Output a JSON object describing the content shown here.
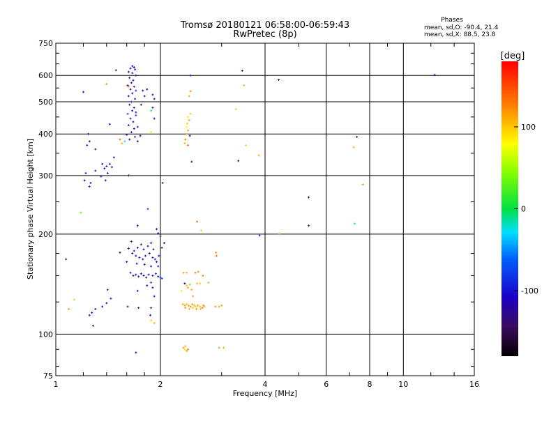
{
  "chart_data": {
    "type": "scatter",
    "title": "Tromsø 20180121 06:58:00-06:59:43",
    "subtitle": "RwPretec (8p)",
    "xlabel": "Frequency [MHz]",
    "ylabel": "Stationary phase Virtual Height [km]",
    "x_scale": "log",
    "y_scale": "log",
    "xlim": [
      1,
      16
    ],
    "ylim": [
      75,
      750
    ],
    "x_ticks": [
      1,
      2,
      4,
      6,
      8,
      10,
      16
    ],
    "x_tick_labels": [
      "1",
      "2",
      "4",
      "6",
      "8",
      "10",
      "16"
    ],
    "y_ticks": [
      75,
      100,
      200,
      300,
      400,
      500,
      600,
      750
    ],
    "y_tick_labels": [
      "75",
      "100",
      "200",
      "300",
      "400",
      "500",
      "600",
      "750"
    ],
    "grid": true,
    "stats": {
      "heading": "Phases",
      "line_o": "mean, sd,O: -90.4, 21.4",
      "line_x": "mean, sd,X:  88.5, 23.8"
    },
    "colorbar": {
      "label": "[deg]",
      "range": [
        -180,
        180
      ],
      "ticks": [
        -100,
        0,
        100
      ],
      "tick_labels": [
        "-100",
        "0",
        "100"
      ]
    },
    "points": [
      [
        1.66,
        640,
        -110
      ],
      [
        1.68,
        635,
        -105
      ],
      [
        1.64,
        630,
        -120
      ],
      [
        1.69,
        625,
        -100
      ],
      [
        1.62,
        615,
        -115
      ],
      [
        1.66,
        610,
        -90
      ],
      [
        1.7,
        600,
        -110
      ],
      [
        1.63,
        590,
        -105
      ],
      [
        1.67,
        580,
        -125
      ],
      [
        1.65,
        570,
        -100
      ],
      [
        1.61,
        560,
        -110
      ],
      [
        1.68,
        555,
        -95
      ],
      [
        1.64,
        545,
        -120
      ],
      [
        1.7,
        540,
        -80
      ],
      [
        1.66,
        530,
        -110
      ],
      [
        1.62,
        520,
        -100
      ],
      [
        1.69,
        510,
        -115
      ],
      [
        1.65,
        500,
        -90
      ],
      [
        1.63,
        490,
        -120
      ],
      [
        1.68,
        480,
        -100
      ],
      [
        1.66,
        470,
        -110
      ],
      [
        1.61,
        460,
        -85
      ],
      [
        1.7,
        455,
        -70
      ],
      [
        1.64,
        445,
        -105
      ],
      [
        1.67,
        435,
        -120
      ],
      [
        1.62,
        425,
        -100
      ],
      [
        1.68,
        415,
        -110
      ],
      [
        1.65,
        405,
        -95
      ],
      [
        1.6,
        398,
        -115
      ],
      [
        1.69,
        392,
        -100
      ],
      [
        1.63,
        385,
        -120
      ],
      [
        1.58,
        380,
        -30
      ],
      [
        1.55,
        375,
        110
      ],
      [
        1.53,
        385,
        140
      ],
      [
        1.72,
        380,
        -110
      ],
      [
        1.75,
        395,
        -100
      ],
      [
        1.72,
        420,
        -90
      ],
      [
        1.7,
        465,
        -100
      ],
      [
        1.76,
        490,
        -110
      ],
      [
        1.8,
        520,
        -130
      ],
      [
        1.83,
        545,
        -120
      ],
      [
        1.9,
        525,
        -110
      ],
      [
        1.92,
        510,
        -140
      ],
      [
        1.9,
        480,
        -90
      ],
      [
        1.88,
        470,
        -10
      ],
      [
        1.92,
        445,
        -100
      ],
      [
        1.88,
        405,
        90
      ],
      [
        1.78,
        540,
        -115
      ],
      [
        1.49,
        622,
        -140
      ],
      [
        1.4,
        565,
        120
      ],
      [
        1.2,
        535,
        -100
      ],
      [
        1.62,
        555,
        120
      ],
      [
        1.24,
        400,
        -110
      ],
      [
        1.25,
        380,
        -130
      ],
      [
        1.23,
        370,
        -100
      ],
      [
        1.3,
        360,
        -120
      ],
      [
        1.36,
        325,
        -110
      ],
      [
        1.4,
        320,
        -100
      ],
      [
        1.43,
        325,
        -120
      ],
      [
        1.38,
        315,
        -110
      ],
      [
        1.45,
        318,
        -105
      ],
      [
        1.41,
        305,
        -115
      ],
      [
        1.35,
        298,
        -100
      ],
      [
        1.39,
        290,
        -120
      ],
      [
        1.22,
        305,
        -100
      ],
      [
        1.21,
        290,
        -110
      ],
      [
        1.26,
        285,
        -120
      ],
      [
        1.25,
        278,
        -100
      ],
      [
        1.3,
        310,
        -110
      ],
      [
        1.47,
        340,
        -110
      ],
      [
        1.43,
        428,
        -100
      ],
      [
        1.62,
        300,
        -130
      ],
      [
        2.44,
        538,
        120
      ],
      [
        2.42,
        520,
        110
      ],
      [
        2.44,
        460,
        100
      ],
      [
        2.4,
        450,
        90
      ],
      [
        2.42,
        440,
        110
      ],
      [
        2.39,
        430,
        100
      ],
      [
        2.38,
        420,
        80
      ],
      [
        2.4,
        410,
        120
      ],
      [
        2.38,
        400,
        110
      ],
      [
        2.36,
        385,
        130
      ],
      [
        2.35,
        375,
        110
      ],
      [
        2.4,
        370,
        140
      ],
      [
        2.43,
        395,
        -110
      ],
      [
        2.46,
        330,
        -130
      ],
      [
        2.44,
        600,
        -100
      ],
      [
        3.44,
        620,
        -130
      ],
      [
        3.48,
        560,
        110
      ],
      [
        3.3,
        475,
        100
      ],
      [
        3.35,
        332,
        -150
      ],
      [
        3.52,
        370,
        100
      ],
      [
        3.84,
        345,
        110
      ],
      [
        4.38,
        582,
        -130
      ],
      [
        2.03,
        285,
        -140
      ],
      [
        5.34,
        258,
        -120
      ],
      [
        5.34,
        212,
        -130
      ],
      [
        7.35,
        392,
        -130
      ],
      [
        7.2,
        365,
        110
      ],
      [
        7.65,
        282,
        20
      ],
      [
        7.24,
        215,
        -30
      ],
      [
        12.3,
        602,
        -110
      ],
      [
        1.18,
        232,
        30
      ],
      [
        1.84,
        238,
        -80
      ],
      [
        1.72,
        212,
        -110
      ],
      [
        1.95,
        207,
        -140
      ],
      [
        1.97,
        201,
        -120
      ],
      [
        2.0,
        197,
        -130
      ],
      [
        3.86,
        198,
        -100
      ],
      [
        4.4,
        200,
        120
      ],
      [
        2.55,
        218,
        140
      ],
      [
        2.62,
        205,
        100
      ],
      [
        1.66,
        175,
        -120
      ],
      [
        1.7,
        172,
        -110
      ],
      [
        1.74,
        170,
        -115
      ],
      [
        1.78,
        168,
        -105
      ],
      [
        1.81,
        172,
        -120
      ],
      [
        1.86,
        175,
        -110
      ],
      [
        1.9,
        170,
        -100
      ],
      [
        1.93,
        168,
        -115
      ],
      [
        1.68,
        178,
        -100
      ],
      [
        1.72,
        182,
        -110
      ],
      [
        1.76,
        186,
        -120
      ],
      [
        1.79,
        180,
        -105
      ],
      [
        1.84,
        184,
        -110
      ],
      [
        1.88,
        188,
        -100
      ],
      [
        1.62,
        181,
        -140
      ],
      [
        1.65,
        190,
        -130
      ],
      [
        1.6,
        165,
        -110
      ],
      [
        1.95,
        165,
        -120
      ],
      [
        1.98,
        172,
        -110
      ],
      [
        1.91,
        180,
        -130
      ],
      [
        2.02,
        182,
        -140
      ],
      [
        2.05,
        188,
        -140
      ],
      [
        1.97,
        160,
        -100
      ],
      [
        1.88,
        160,
        -110
      ],
      [
        1.8,
        162,
        -115
      ],
      [
        1.71,
        163,
        -105
      ],
      [
        1.64,
        153,
        -120
      ],
      [
        1.67,
        150,
        -150
      ],
      [
        1.7,
        151,
        -130
      ],
      [
        1.73,
        149,
        -140
      ],
      [
        1.76,
        152,
        -130
      ],
      [
        1.79,
        150,
        -120
      ],
      [
        1.82,
        148,
        -140
      ],
      [
        1.85,
        151,
        -110
      ],
      [
        1.9,
        150,
        -120
      ],
      [
        1.94,
        152,
        -100
      ],
      [
        1.97,
        149,
        -110
      ],
      [
        2.0,
        148,
        -90
      ],
      [
        2.02,
        147,
        -80
      ],
      [
        1.88,
        143,
        -100
      ],
      [
        1.9,
        138,
        -120
      ],
      [
        1.83,
        140,
        -110
      ],
      [
        1.92,
        130,
        -100
      ],
      [
        1.72,
        135,
        -100
      ],
      [
        1.53,
        176,
        -120
      ],
      [
        2.33,
        153,
        120
      ],
      [
        2.38,
        153,
        110
      ],
      [
        2.52,
        153,
        130
      ],
      [
        2.57,
        154,
        120
      ],
      [
        2.65,
        150,
        130
      ],
      [
        2.38,
        140,
        100
      ],
      [
        2.4,
        138,
        110
      ],
      [
        2.35,
        142,
        -130
      ],
      [
        2.43,
        141,
        30
      ],
      [
        2.46,
        136,
        110
      ],
      [
        2.6,
        142,
        100
      ],
      [
        2.3,
        135,
        90
      ],
      [
        2.48,
        130,
        120
      ],
      [
        2.55,
        142,
        110
      ],
      [
        2.32,
        123,
        110
      ],
      [
        2.35,
        122,
        120
      ],
      [
        2.38,
        123,
        100
      ],
      [
        2.41,
        122,
        110
      ],
      [
        2.44,
        121,
        130
      ],
      [
        2.47,
        123,
        120
      ],
      [
        2.5,
        122,
        110
      ],
      [
        2.53,
        121,
        100
      ],
      [
        2.56,
        122,
        120
      ],
      [
        2.6,
        121,
        110
      ],
      [
        2.64,
        120,
        130
      ],
      [
        2.68,
        121,
        100
      ],
      [
        2.36,
        120,
        120
      ],
      [
        2.42,
        119,
        110
      ],
      [
        2.48,
        120,
        100
      ],
      [
        2.54,
        119,
        120
      ],
      [
        2.61,
        119,
        110
      ],
      [
        2.66,
        122,
        130
      ],
      [
        2.95,
        121,
        110
      ],
      [
        3.0,
        122,
        120
      ],
      [
        2.89,
        176,
        130
      ],
      [
        2.9,
        172,
        140
      ],
      [
        2.75,
        143,
        110
      ],
      [
        2.88,
        121,
        120
      ],
      [
        1.07,
        168,
        -140
      ],
      [
        1.13,
        127,
        50
      ],
      [
        1.09,
        119,
        120
      ],
      [
        1.41,
        136,
        -90
      ],
      [
        1.44,
        128,
        -110
      ],
      [
        1.4,
        124,
        -120
      ],
      [
        1.36,
        121,
        -100
      ],
      [
        1.3,
        119,
        -110
      ],
      [
        1.27,
        116,
        -120
      ],
      [
        1.25,
        114,
        -100
      ],
      [
        1.28,
        106,
        -110
      ],
      [
        1.61,
        121,
        -130
      ],
      [
        1.73,
        120,
        -130
      ],
      [
        1.88,
        120,
        -130
      ],
      [
        1.87,
        114,
        -100
      ],
      [
        1.92,
        108,
        110
      ],
      [
        1.88,
        110,
        100
      ],
      [
        1.7,
        88,
        -110
      ],
      [
        2.33,
        91,
        120
      ],
      [
        2.36,
        92,
        110
      ],
      [
        2.4,
        90,
        130
      ],
      [
        2.38,
        89,
        120
      ],
      [
        2.35,
        90,
        90
      ],
      [
        2.95,
        91,
        120
      ],
      [
        3.04,
        91,
        110
      ]
    ]
  }
}
